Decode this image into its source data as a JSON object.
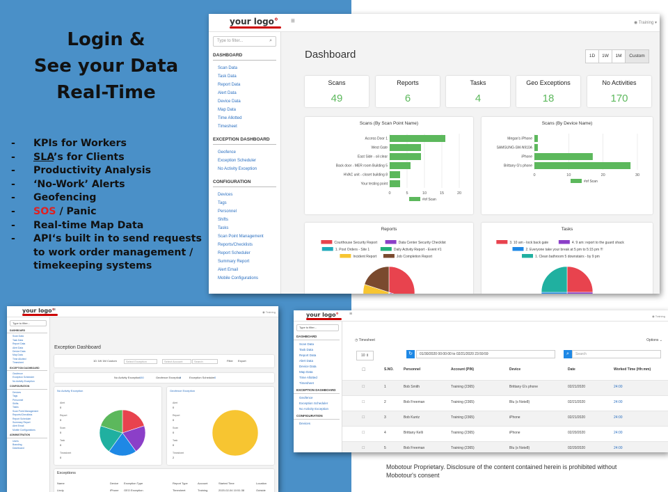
{
  "slide": {
    "title_line1": "Login &",
    "title_line2": "See your Data",
    "title_line3": "Real-Time",
    "bullets": [
      "KPIs for Workers",
      "Productivity Analysis",
      "‘No-Work’ Alerts",
      "Geofencing",
      "Real-time Map Data",
      "API‘s built in to send requests to work order management / timekeeping systems"
    ],
    "bullet_sla": {
      "underlined": "SLA",
      "rest": "’s for Clients"
    },
    "bullet_sos": {
      "highlight": "SOS",
      "rest": " / Panic"
    },
    "footer": "Mobotour Proprietary. Disclosure of the content contained herein is prohibited without Mobotour's consent"
  },
  "app": {
    "logo_main": "your logo",
    "logo_accent": "°",
    "user": "Training"
  },
  "sidebar": {
    "filter_placeholder": "Type to filter...",
    "sections": [
      {
        "title": "DASHBOARD",
        "links": [
          "Scan Data",
          "Task Data",
          "Report Data",
          "Alert Data",
          "Device Data",
          "Map Data",
          "Time Allotted",
          "Timesheet"
        ]
      },
      {
        "title": "EXCEPTION DASHBOARD",
        "links": [
          "Geofence",
          "Exception Scheduler",
          "No Activity Exception"
        ]
      },
      {
        "title": "CONFIGURATION",
        "links": [
          "Devices",
          "Tags",
          "Personnel",
          "Shifts",
          "Tasks",
          "Scan Point Management",
          "Reports/Checklists",
          "Report Scheduler",
          "Summary Report",
          "Alert Email",
          "Mobile Configurations"
        ]
      }
    ]
  },
  "dashboard": {
    "title": "Dashboard",
    "ranges": [
      "1D",
      "1W",
      "1M",
      "Custom"
    ],
    "kpis": [
      {
        "label": "Scans",
        "value": "49"
      },
      {
        "label": "Reports",
        "value": "6"
      },
      {
        "label": "Tasks",
        "value": "4"
      },
      {
        "label": "Geo Exceptions",
        "value": "18"
      },
      {
        "label": "No Activities",
        "value": "170"
      }
    ]
  },
  "chart_data": [
    {
      "type": "bar",
      "title": "Scans (By Scan Point Name)",
      "categories": [
        "Access Door 1",
        "West Gate",
        "East Side - oil clear",
        "Back door - MER room Building 5",
        "HVAC unit - closet building 8",
        "Your testing point"
      ],
      "values": [
        16,
        9,
        9,
        6,
        3,
        3
      ],
      "xlim": [
        0,
        20
      ],
      "xticks": [
        "0",
        "5",
        "10",
        "15",
        "20"
      ],
      "legend": "#of Scan",
      "color": "#5cb85c"
    },
    {
      "type": "bar",
      "title": "Scans (By Device Name)",
      "categories": [
        "Megan's iPhone",
        "SAMSUNG-SM-N910A",
        "iPhone",
        "Brittany G's phone"
      ],
      "values": [
        1,
        1,
        17,
        28
      ],
      "xlim": [
        0,
        30
      ],
      "xticks": [
        "0",
        "10",
        "20",
        "30"
      ],
      "legend": "#of Scan",
      "color": "#5cb85c"
    },
    {
      "type": "pie",
      "title": "Reports",
      "legend": [
        "Courthouse Security Report",
        "Data Center Security Checklist",
        "1. Post Orders - Site 1",
        "Daily Activity Report - Event #1",
        "Incident Report",
        "Job Completion Report"
      ],
      "colors": [
        "#e8434e",
        "#8b3fc8",
        "#20aabb",
        "#22b07a",
        "#f7c531",
        "#7a4a2e"
      ],
      "values": [
        30,
        8,
        5,
        12,
        25,
        20
      ]
    },
    {
      "type": "pie",
      "title": "Tasks",
      "legend": [
        "3. 10 am - lock back gate",
        "4. 9 am: report to the guard shack",
        "2. Everyone take your break at 5 pm to 5:15 pm !!!",
        "1. Clean bathroom 5 downstairs - by 9 pm"
      ],
      "colors": [
        "#e8434e",
        "#8b3fc8",
        "#1e88e5",
        "#20b0a0"
      ],
      "values": [
        25,
        25,
        25,
        25
      ]
    }
  ],
  "exception": {
    "title": "Exception Dashboard",
    "ranges": "1D  1W  1M  Custom",
    "select_placeholder": "Select Exception",
    "account_placeholder": "Select Account",
    "search_placeholder": "Search",
    "filter_button": "Filter",
    "export_button": "Export",
    "summary": [
      {
        "label": "No Activity Exception",
        "value": "150"
      },
      {
        "label": "Geofence Exception",
        "value": "2"
      },
      {
        "label": "Exception Scheduler",
        "value": "0"
      }
    ],
    "panels": [
      "No Activity Exception",
      "Geofence Exception"
    ],
    "pie_colors": [
      [
        "#e8434e",
        "#8b3fc8",
        "#1e88e5",
        "#20b0a0",
        "#5cb85c"
      ],
      [
        "#f7c531"
      ]
    ],
    "table_title": "Exceptions",
    "table_headers": [
      "Name",
      "Device",
      "Exception Type",
      "Report Type",
      "Account",
      "Started Time",
      "Location"
    ],
    "table_row": [
      "Lindy",
      "iPhone",
      "GEO Exception",
      "Timesheet",
      "Training",
      "2020-02-04 10:51:38",
      "Outside"
    ]
  },
  "exception_sidebar": [
    "DASHBOARD",
    "Scan Data",
    "Task Data",
    "Report Data",
    "Alert Data",
    "Device Data",
    "Map Data",
    "Time Allotted",
    "Timesheet",
    "EXCEPTION DASHBOARD",
    "Geofence",
    "Exception Scheduler",
    "No Activity Exception",
    "CONFIGURATION",
    "Devices",
    "Tags",
    "Personnel",
    "Shifts",
    "Tasks",
    "Scan Point Management",
    "Reports/Checklists",
    "Report Scheduler",
    "Summary Report",
    "Alert Email",
    "Mobile Configurations",
    "ADMINISTRATION",
    "Users",
    "Branding",
    "Dashboard"
  ],
  "timesheet_sidebar": [
    "DASHBOARD",
    "Scan Data",
    "Task Data",
    "Report Data",
    "Alert Data",
    "Device Data",
    "Map Data",
    "Time Allotted",
    "Timesheet",
    "EXCEPTION DASHBOARD",
    "Geofence",
    "Exception Scheduler",
    "No Activity Exception",
    "CONFIGURATION",
    "Devices"
  ],
  "timesheet": {
    "title": "Timesheet",
    "options": "Options",
    "page_size": "10",
    "date_range": "01/30/2020 00:00:00 to 02/21/2020 23:59:59",
    "search_placeholder": "Search",
    "headers": [
      "S.NO.",
      "Personnel",
      "Account (PIN)",
      "Device",
      "Date",
      "Worked Time (Hh:mm)"
    ],
    "rows": [
      [
        "1",
        "Bob Smith",
        "Training (2365)",
        "Brittany G's phone",
        "02/21/2020",
        "24:00"
      ],
      [
        "2",
        "Bob Freeman",
        "Training (2365)",
        "Blu (s Note8)",
        "02/21/2020",
        "24:00"
      ],
      [
        "3",
        "Bob Kuntz",
        "Training (2365)",
        "iPhone",
        "02/21/2020",
        "24:00"
      ],
      [
        "4",
        "Brittany Kelli",
        "Training (2365)",
        "iPhone",
        "02/20/2020",
        "24:00"
      ],
      [
        "5",
        "Bob Freeman",
        "Training (2365)",
        "Blu (s Note8)",
        "02/20/2020",
        "24:00"
      ],
      [
        "6",
        "Brittany Kelli",
        "Training (2365)",
        "iPhone",
        "02/20/2020",
        "24:00"
      ]
    ]
  }
}
